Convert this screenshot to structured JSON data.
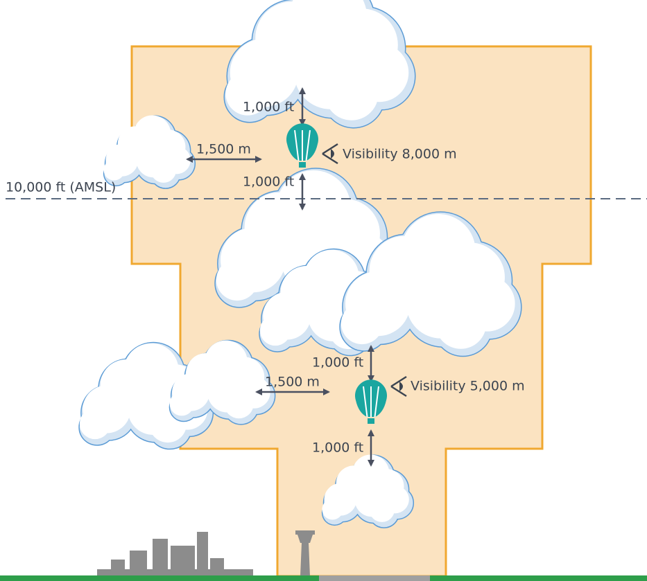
{
  "altitude_line": {
    "label": "10,000 ft (AMSL)"
  },
  "upper": {
    "above": "1,000 ft",
    "horizontal": "1,500 m",
    "below": "1,000 ft",
    "visibility": "Visibility 8,000 m"
  },
  "lower": {
    "above": "1,000 ft",
    "horizontal": "1,500 m",
    "below": "1,000 ft",
    "visibility": "Visibility 5,000 m"
  }
}
